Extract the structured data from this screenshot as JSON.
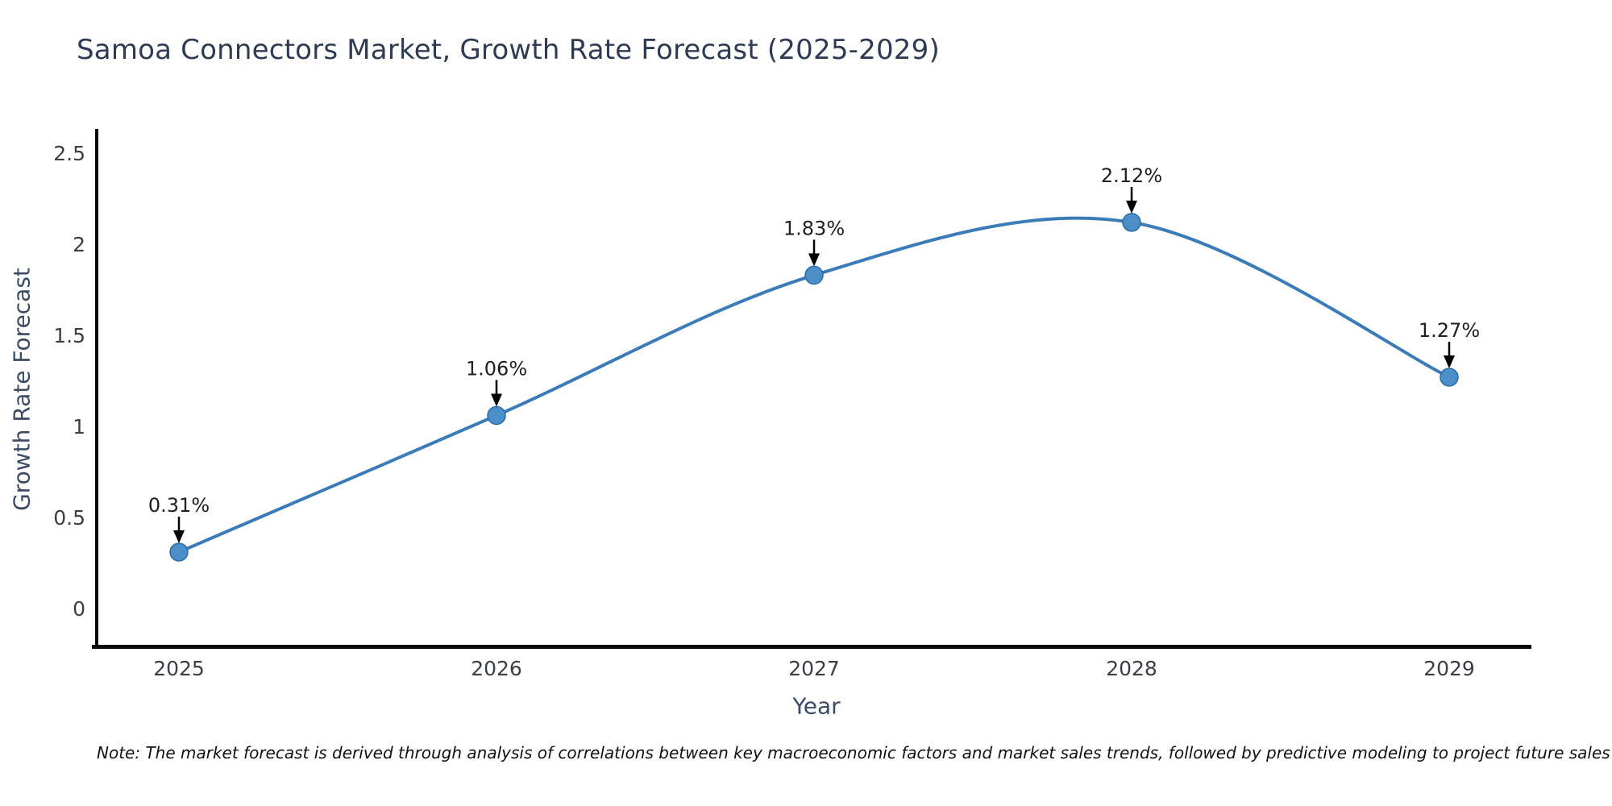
{
  "chart_data": {
    "type": "line",
    "title": "Samoa Connectors Market, Growth Rate Forecast (2025-2029)",
    "xlabel": "Year",
    "ylabel": "Growth Rate Forecast",
    "categories": [
      "2025",
      "2026",
      "2027",
      "2028",
      "2029"
    ],
    "values": [
      0.31,
      1.06,
      1.83,
      2.12,
      1.27
    ],
    "point_labels": [
      "0.31%",
      "1.06%",
      "1.83%",
      "2.12%",
      "1.27%"
    ],
    "yticks": [
      0,
      0.5,
      1,
      1.5,
      2,
      2.5
    ],
    "ylim": [
      -0.21,
      2.63
    ],
    "grid": false,
    "legend": "none",
    "line_color": "#3b7cb8",
    "marker_fill": "#4a8fc7",
    "marker_edge": "#2e6ca5",
    "annotation_color": "#1f1f1f"
  },
  "note": "Note: The market forecast is derived through analysis of correlations between key macroeconomic factors and market sales trends, followed by predictive modeling to project future sales",
  "colors": {
    "title": "#2e3b52",
    "axis_label": "#3c4b63",
    "tick": "#3a3e45",
    "spine": "#0a0a0a",
    "background": "#ffffff"
  }
}
